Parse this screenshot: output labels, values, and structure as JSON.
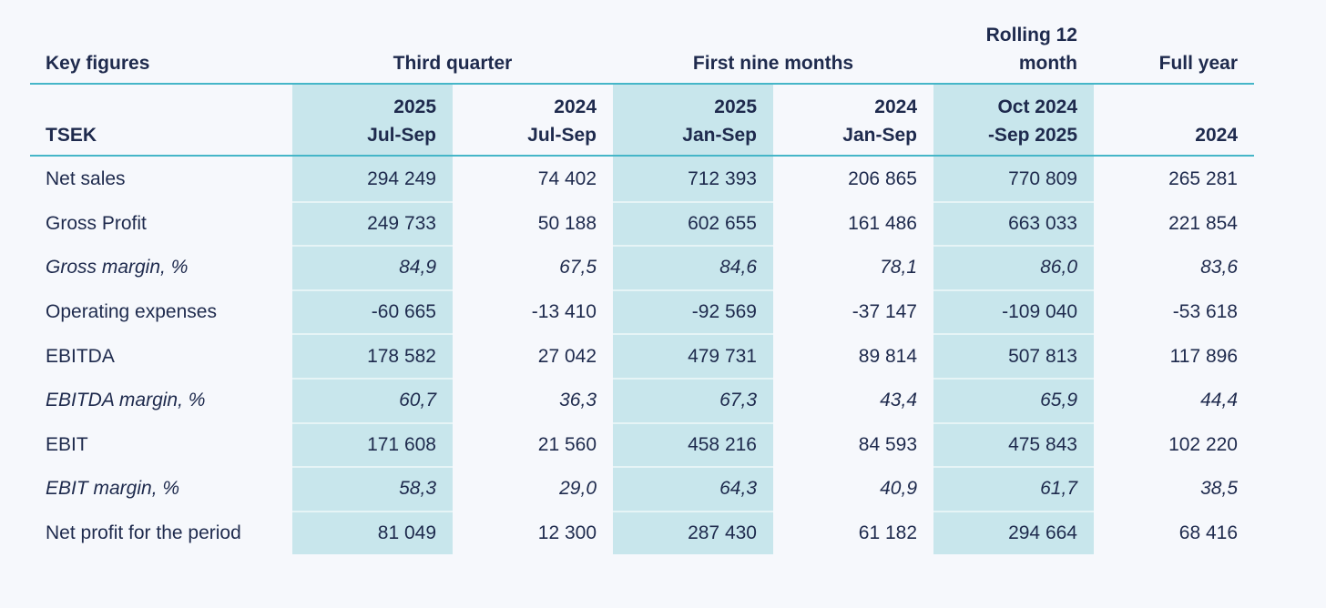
{
  "colors": {
    "background": "#f6f8fc",
    "text": "#1e2a4d",
    "column_highlight": "#c8e6ec",
    "rule_line": "#45b6c8",
    "highlight_row_separator": "rgba(255,255,255,0.55)"
  },
  "table": {
    "title": "Key figures",
    "unit_label": "TSEK",
    "groups": {
      "third_quarter": "Third quarter",
      "first_nine_months": "First nine months",
      "rolling_line1": "Rolling 12",
      "rolling_line2": "month",
      "full_year": "Full year"
    },
    "subheaders": [
      {
        "line1": "2025",
        "line2": "Jul-Sep"
      },
      {
        "line1": "2024",
        "line2": "Jul-Sep"
      },
      {
        "line1": "2025",
        "line2": "Jan-Sep"
      },
      {
        "line1": "2024",
        "line2": "Jan-Sep"
      },
      {
        "line1": "Oct 2024",
        "line2": "-Sep 2025"
      },
      {
        "line1": "",
        "line2": "2024"
      }
    ],
    "highlight_columns": [
      0,
      2,
      4
    ],
    "rows": [
      {
        "label": "Net sales",
        "italic": false,
        "values": [
          "294 249",
          "74 402",
          "712 393",
          "206 865",
          "770 809",
          "265 281"
        ]
      },
      {
        "label": "Gross Profit",
        "italic": false,
        "values": [
          "249 733",
          "50 188",
          "602 655",
          "161 486",
          "663 033",
          "221 854"
        ]
      },
      {
        "label": "Gross margin, %",
        "italic": true,
        "values": [
          "84,9",
          "67,5",
          "84,6",
          "78,1",
          "86,0",
          "83,6"
        ]
      },
      {
        "label": "Operating expenses",
        "italic": false,
        "values": [
          "-60 665",
          "-13 410",
          "-92 569",
          "-37 147",
          "-109 040",
          "-53 618"
        ]
      },
      {
        "label": "EBITDA",
        "italic": false,
        "values": [
          "178 582",
          "27 042",
          "479 731",
          "89 814",
          "507 813",
          "117 896"
        ]
      },
      {
        "label": "EBITDA margin, %",
        "italic": true,
        "values": [
          "60,7",
          "36,3",
          "67,3",
          "43,4",
          "65,9",
          "44,4"
        ]
      },
      {
        "label": "EBIT",
        "italic": false,
        "values": [
          "171 608",
          "21 560",
          "458 216",
          "84 593",
          "475 843",
          "102 220"
        ]
      },
      {
        "label": "EBIT margin, %",
        "italic": true,
        "values": [
          "58,3",
          "29,0",
          "64,3",
          "40,9",
          "61,7",
          "38,5"
        ]
      },
      {
        "label": "Net profit for the period",
        "italic": false,
        "values": [
          "81 049",
          "12 300",
          "287 430",
          "61 182",
          "294 664",
          "68 416"
        ]
      }
    ]
  }
}
